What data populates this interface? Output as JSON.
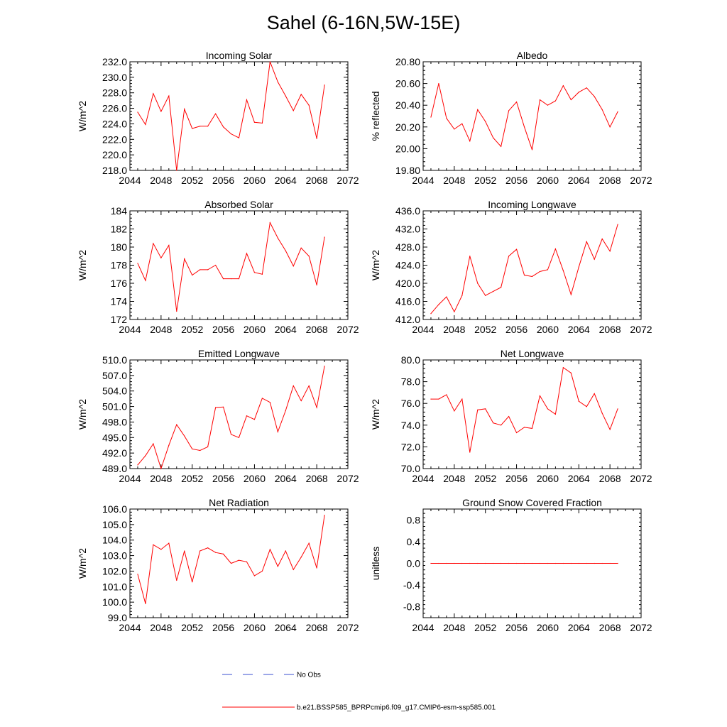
{
  "page_title": "Sahel (6-16N,5W-15E)",
  "colors": {
    "series": "#ff0000",
    "obs": "#3a4fd0",
    "axis": "#000000"
  },
  "legend": {
    "obs_label": "No Obs",
    "model_label": "b.e21.BSSP585_BPRPcmip6.f09_g17.CMIP6-esm-ssp585.001"
  },
  "chart_data": [
    {
      "type": "line",
      "title": "Incoming Solar",
      "ylabel": "W/m^2",
      "xlim": [
        2044,
        2072
      ],
      "xticks": [
        2044,
        2048,
        2052,
        2056,
        2060,
        2064,
        2068,
        2072
      ],
      "ylim": [
        218,
        232
      ],
      "yticks": [
        218,
        220,
        222,
        224,
        226,
        228,
        230,
        232
      ],
      "ydecimals": 1,
      "x": [
        2045,
        2046,
        2047,
        2048,
        2049,
        2050,
        2051,
        2052,
        2053,
        2054,
        2055,
        2056,
        2057,
        2058,
        2059,
        2060,
        2061,
        2062,
        2063,
        2064,
        2065,
        2066,
        2067,
        2068,
        2069
      ],
      "values": [
        225.5,
        223.9,
        227.9,
        225.6,
        227.6,
        218.0,
        225.9,
        223.4,
        223.7,
        223.7,
        225.3,
        223.6,
        222.7,
        222.2,
        227.1,
        224.2,
        224.1,
        232.0,
        229.4,
        227.6,
        225.7,
        227.8,
        226.4,
        222.1,
        229.0
      ]
    },
    {
      "type": "line",
      "title": "Albedo",
      "ylabel": "% reflected",
      "xlim": [
        2044,
        2072
      ],
      "xticks": [
        2044,
        2048,
        2052,
        2056,
        2060,
        2064,
        2068,
        2072
      ],
      "ylim": [
        19.8,
        20.8
      ],
      "yticks": [
        19.8,
        20.0,
        20.2,
        20.4,
        20.6,
        20.8
      ],
      "ydecimals": 2,
      "x": [
        2045,
        2046,
        2047,
        2048,
        2049,
        2050,
        2051,
        2052,
        2053,
        2054,
        2055,
        2056,
        2057,
        2058,
        2059,
        2060,
        2061,
        2062,
        2063,
        2064,
        2065,
        2066,
        2067,
        2068,
        2069
      ],
      "values": [
        20.29,
        20.6,
        20.28,
        20.18,
        20.23,
        20.07,
        20.36,
        20.25,
        20.1,
        20.02,
        20.35,
        20.43,
        20.2,
        19.99,
        20.45,
        20.4,
        20.44,
        20.58,
        20.45,
        20.52,
        20.56,
        20.48,
        20.36,
        20.2,
        20.34
      ]
    },
    {
      "type": "line",
      "title": "Absorbed Solar",
      "ylabel": "W/m^2",
      "xlim": [
        2044,
        2072
      ],
      "xticks": [
        2044,
        2048,
        2052,
        2056,
        2060,
        2064,
        2068,
        2072
      ],
      "ylim": [
        172,
        184
      ],
      "yticks": [
        172,
        174,
        176,
        178,
        180,
        182,
        184
      ],
      "ydecimals": 0,
      "x": [
        2045,
        2046,
        2047,
        2048,
        2049,
        2050,
        2051,
        2052,
        2053,
        2054,
        2055,
        2056,
        2057,
        2058,
        2059,
        2060,
        2061,
        2062,
        2063,
        2064,
        2065,
        2066,
        2067,
        2068,
        2069
      ],
      "values": [
        178.2,
        176.3,
        180.4,
        178.8,
        180.2,
        172.9,
        178.7,
        176.9,
        177.5,
        177.5,
        178.0,
        176.5,
        176.5,
        176.5,
        179.3,
        177.2,
        177.0,
        182.7,
        181.0,
        179.6,
        177.9,
        179.9,
        179.0,
        175.8,
        181.1
      ]
    },
    {
      "type": "line",
      "title": "Incoming Longwave",
      "ylabel": "W/m^2",
      "xlim": [
        2044,
        2072
      ],
      "xticks": [
        2044,
        2048,
        2052,
        2056,
        2060,
        2064,
        2068,
        2072
      ],
      "ylim": [
        412,
        436
      ],
      "yticks": [
        412,
        416,
        420,
        424,
        428,
        432,
        436
      ],
      "ydecimals": 1,
      "x": [
        2045,
        2046,
        2047,
        2048,
        2049,
        2050,
        2051,
        2052,
        2053,
        2054,
        2055,
        2056,
        2057,
        2058,
        2059,
        2060,
        2061,
        2062,
        2063,
        2064,
        2065,
        2066,
        2067,
        2068,
        2069
      ],
      "values": [
        413.3,
        415.3,
        417.0,
        413.7,
        417.3,
        426.0,
        420.0,
        417.3,
        418.2,
        419.1,
        426.0,
        427.5,
        421.8,
        421.5,
        422.6,
        423.0,
        427.6,
        422.8,
        417.5,
        423.6,
        429.2,
        425.3,
        429.8,
        427.1,
        433.0
      ]
    },
    {
      "type": "line",
      "title": "Emitted Longwave",
      "ylabel": "W/m^2",
      "xlim": [
        2044,
        2072
      ],
      "xticks": [
        2044,
        2048,
        2052,
        2056,
        2060,
        2064,
        2068,
        2072
      ],
      "ylim": [
        489,
        510
      ],
      "yticks": [
        489,
        492,
        495,
        498,
        501,
        504,
        507,
        510
      ],
      "ydecimals": 1,
      "x": [
        2045,
        2046,
        2047,
        2048,
        2049,
        2050,
        2051,
        2052,
        2053,
        2054,
        2055,
        2056,
        2057,
        2058,
        2059,
        2060,
        2061,
        2062,
        2063,
        2064,
        2065,
        2066,
        2067,
        2068,
        2069
      ],
      "values": [
        489.7,
        491.5,
        493.8,
        489.0,
        493.5,
        497.5,
        495.3,
        492.8,
        492.5,
        493.2,
        500.8,
        500.9,
        495.6,
        495.0,
        499.2,
        498.5,
        502.6,
        501.8,
        496.1,
        500.2,
        505.0,
        502.1,
        505.0,
        500.8,
        508.8
      ]
    },
    {
      "type": "line",
      "title": "Net Longwave",
      "ylabel": "W/m^2",
      "xlim": [
        2044,
        2072
      ],
      "xticks": [
        2044,
        2048,
        2052,
        2056,
        2060,
        2064,
        2068,
        2072
      ],
      "ylim": [
        70,
        80
      ],
      "yticks": [
        70,
        72,
        74,
        76,
        78,
        80
      ],
      "ydecimals": 1,
      "x": [
        2045,
        2046,
        2047,
        2048,
        2049,
        2050,
        2051,
        2052,
        2053,
        2054,
        2055,
        2056,
        2057,
        2058,
        2059,
        2060,
        2061,
        2062,
        2063,
        2064,
        2065,
        2066,
        2067,
        2068,
        2069
      ],
      "values": [
        76.4,
        76.4,
        76.8,
        75.3,
        76.4,
        71.5,
        75.4,
        75.5,
        74.2,
        74.0,
        74.8,
        73.3,
        73.8,
        73.7,
        76.7,
        75.5,
        75.0,
        79.3,
        78.8,
        76.2,
        75.7,
        76.9,
        75.1,
        73.6,
        75.5
      ]
    },
    {
      "type": "line",
      "title": "Net Radiation",
      "ylabel": "W/m^2",
      "xlim": [
        2044,
        2072
      ],
      "xticks": [
        2044,
        2048,
        2052,
        2056,
        2060,
        2064,
        2068,
        2072
      ],
      "ylim": [
        99,
        106
      ],
      "yticks": [
        99,
        100,
        101,
        102,
        103,
        104,
        105,
        106
      ],
      "ydecimals": 1,
      "x": [
        2045,
        2046,
        2047,
        2048,
        2049,
        2050,
        2051,
        2052,
        2053,
        2054,
        2055,
        2056,
        2057,
        2058,
        2059,
        2060,
        2061,
        2062,
        2063,
        2064,
        2065,
        2066,
        2067,
        2068,
        2069
      ],
      "values": [
        101.8,
        99.9,
        103.7,
        103.4,
        103.8,
        101.4,
        103.3,
        101.3,
        103.3,
        103.5,
        103.2,
        103.1,
        102.5,
        102.7,
        102.6,
        101.7,
        102.0,
        103.4,
        102.3,
        103.3,
        102.1,
        102.9,
        103.8,
        102.2,
        105.6
      ]
    },
    {
      "type": "line",
      "title": "Ground Snow Covered Fraction",
      "ylabel": "unitless",
      "xlim": [
        2044,
        2072
      ],
      "xticks": [
        2044,
        2048,
        2052,
        2056,
        2060,
        2064,
        2068,
        2072
      ],
      "ylim": [
        -1.0,
        1.0
      ],
      "yticks": [
        -0.8,
        -0.4,
        0.0,
        0.4,
        0.8
      ],
      "ydecimals": 1,
      "x": [
        2045,
        2046,
        2047,
        2048,
        2049,
        2050,
        2051,
        2052,
        2053,
        2054,
        2055,
        2056,
        2057,
        2058,
        2059,
        2060,
        2061,
        2062,
        2063,
        2064,
        2065,
        2066,
        2067,
        2068,
        2069
      ],
      "values": [
        0,
        0,
        0,
        0,
        0,
        0,
        0,
        0,
        0,
        0,
        0,
        0,
        0,
        0,
        0,
        0,
        0,
        0,
        0,
        0,
        0,
        0,
        0,
        0,
        0
      ]
    }
  ]
}
